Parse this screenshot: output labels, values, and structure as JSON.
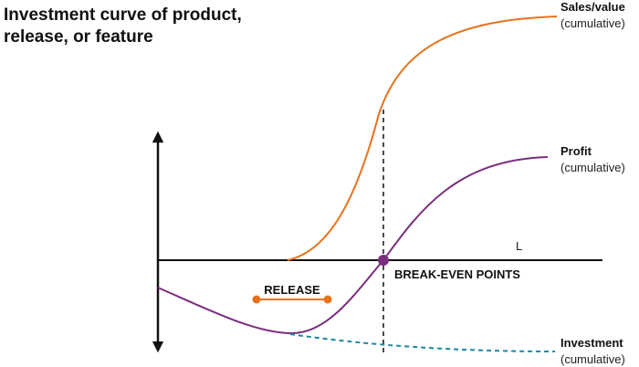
{
  "title": {
    "lines": [
      "Investment curve of product,",
      "release, or feature"
    ]
  },
  "curves": {
    "sales": {
      "label": "Sales/value",
      "sublabel": "(cumulative)"
    },
    "profit": {
      "label": "Profit",
      "sublabel": "(cumulative)"
    },
    "investment": {
      "label": "Investment",
      "sublabel": "(cumulative)"
    }
  },
  "axis_label": "L",
  "release_label": "RELEASE",
  "break_even_label": "BREAK-EVEN POINTS"
}
